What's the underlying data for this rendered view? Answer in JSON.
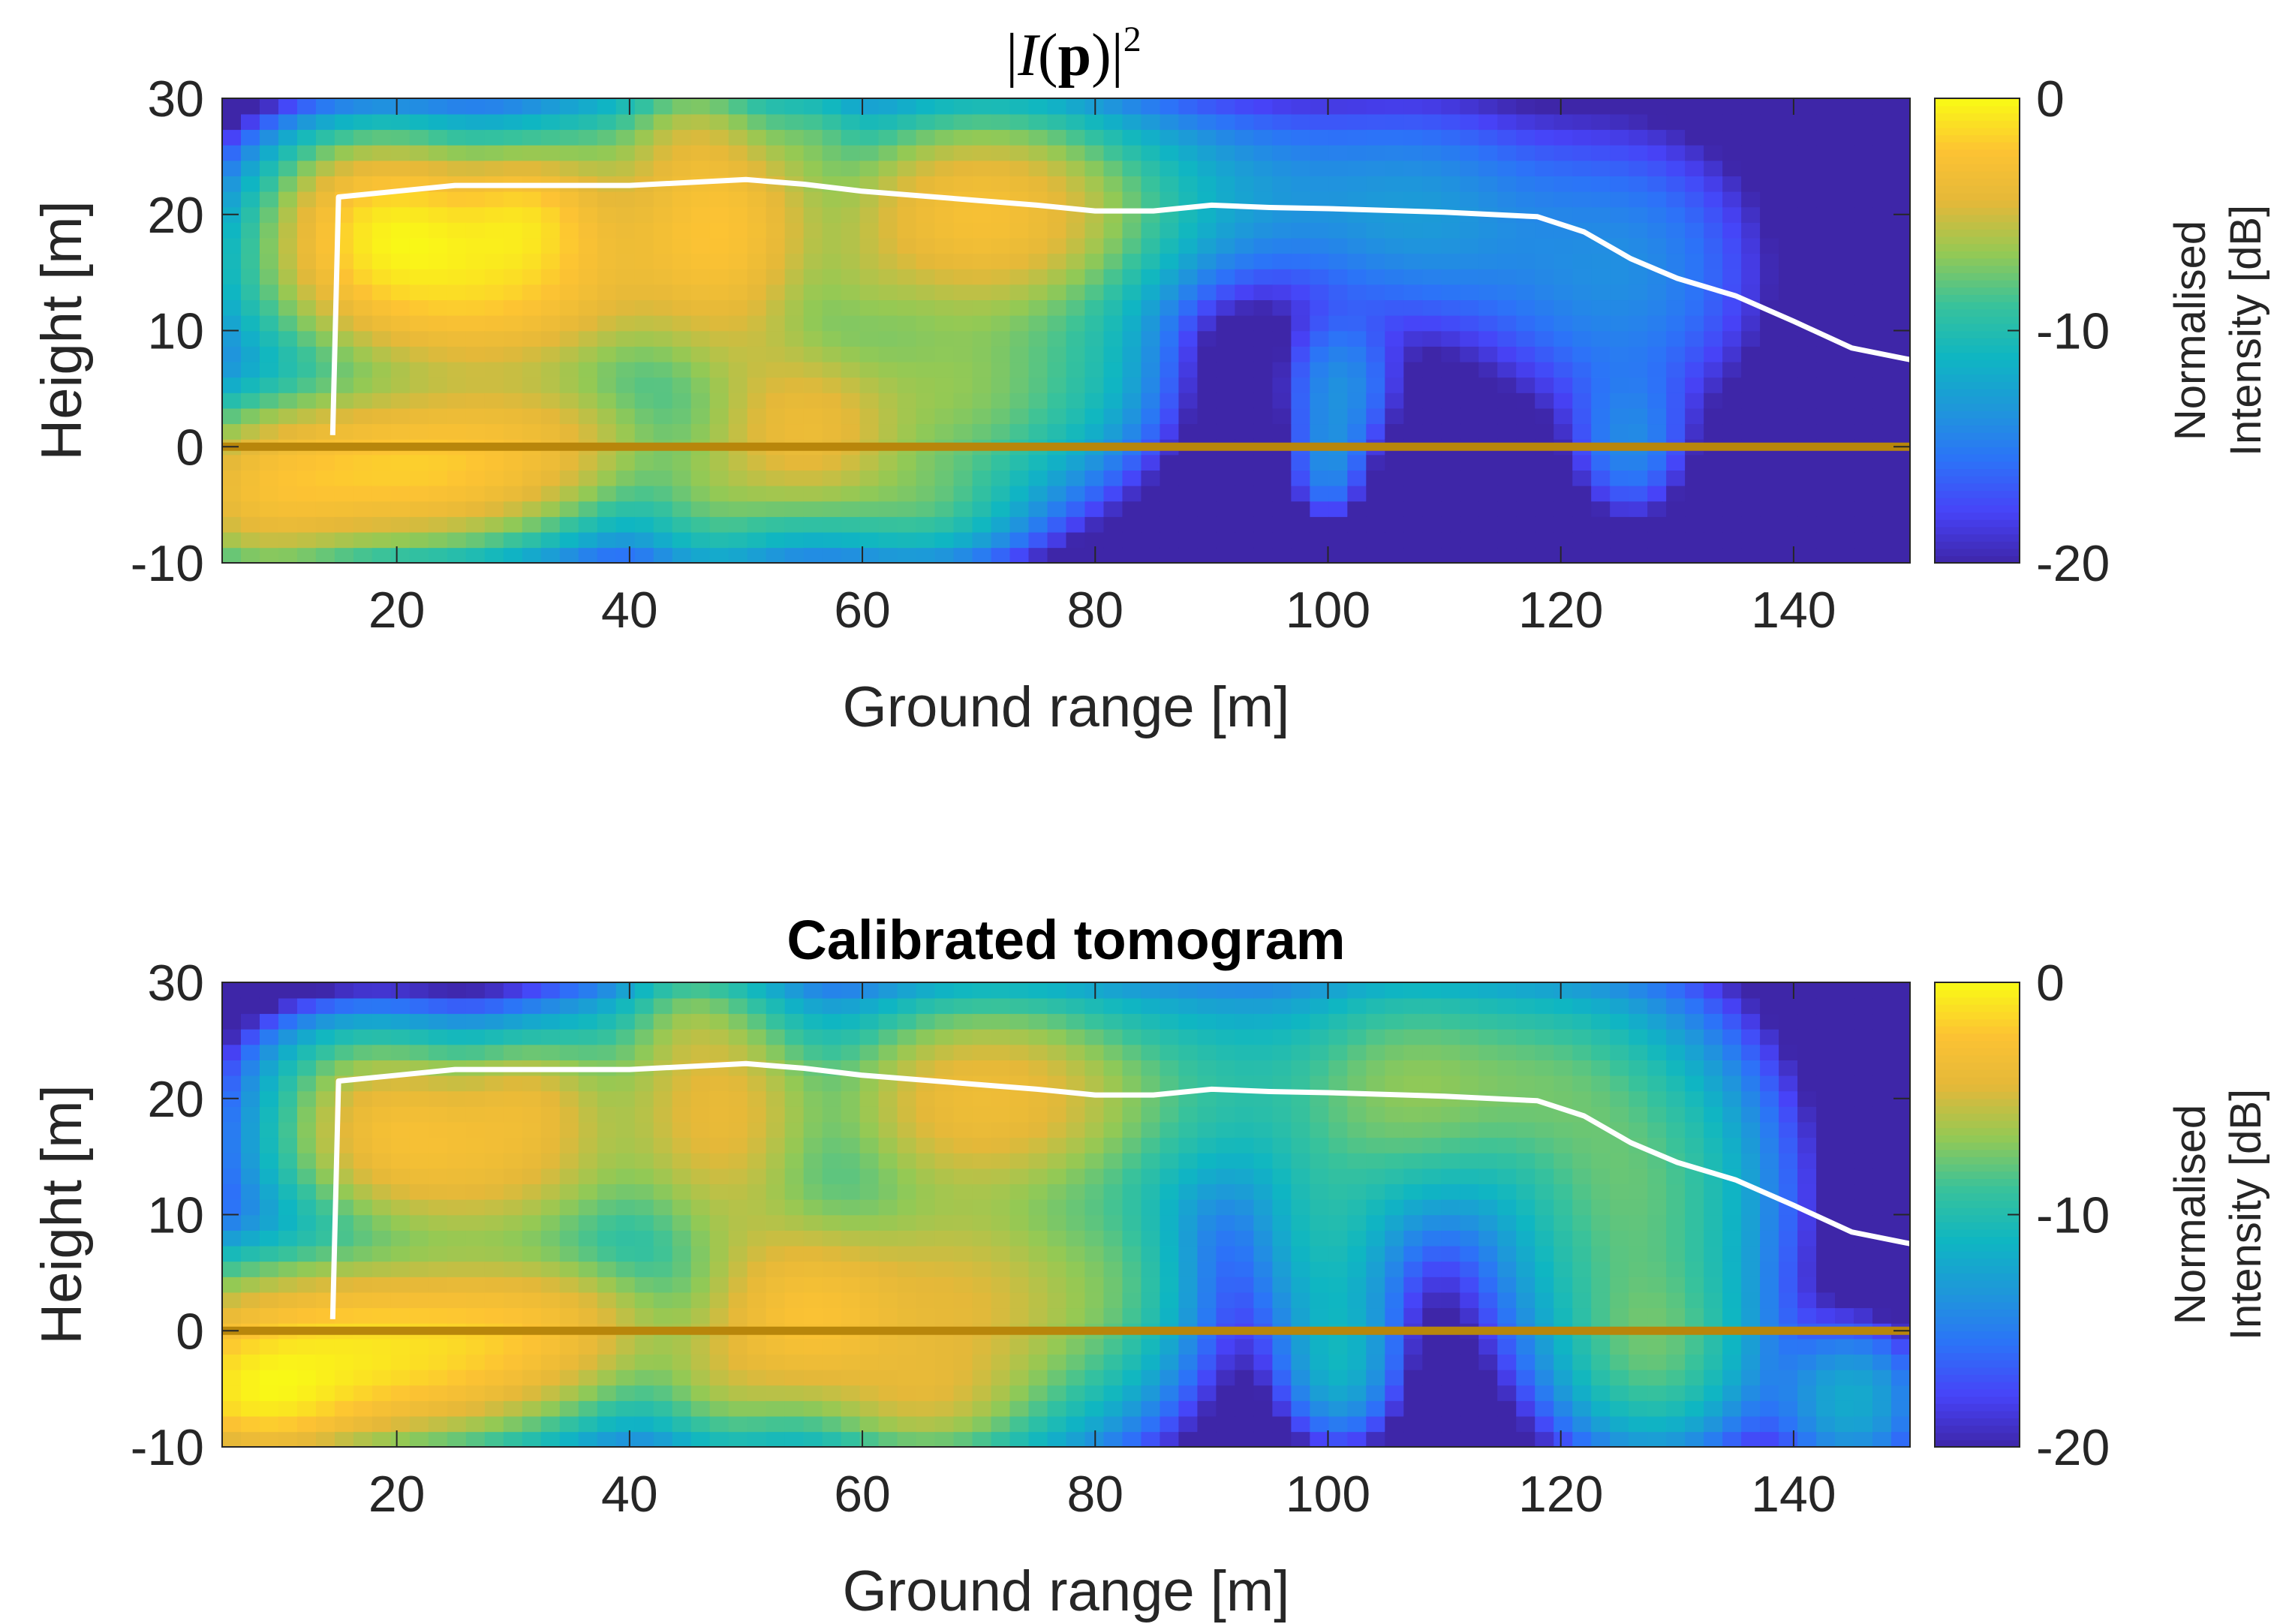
{
  "chart_data": [
    {
      "type": "heatmap",
      "title": "|I(p)|²",
      "title_parts": {
        "pre": "|",
        "var": "I",
        "open": "(",
        "bold": "p",
        "close": ")|",
        "sup": "2"
      },
      "xlabel": "Ground range [m]",
      "ylabel": "Height [m]",
      "xlim": [
        5,
        150
      ],
      "ylim": [
        -10,
        30
      ],
      "xticks": [
        20,
        40,
        60,
        80,
        100,
        120,
        140
      ],
      "yticks": [
        -10,
        0,
        10,
        20,
        30
      ],
      "colorbar": {
        "label_line1": "Normalised",
        "label_line2": "Intensity [dB]",
        "range": [
          -20,
          0
        ],
        "ticks": [
          0,
          -10,
          -20
        ]
      },
      "colormap": [
        "#3e26a8",
        "#4743f8",
        "#2c73f8",
        "#1e97da",
        "#0fb6c2",
        "#38c29b",
        "#94c954",
        "#e4b839",
        "#fdc333",
        "#f9fb15"
      ],
      "ground_line": {
        "height": 0,
        "color": "#b8860b"
      },
      "canopy_profile": {
        "color": "#ffffff",
        "x": [
          14.5,
          15,
          16,
          20,
          25,
          30,
          40,
          50,
          55,
          60,
          70,
          75,
          80,
          85,
          90,
          95,
          100,
          110,
          118,
          122,
          126,
          130,
          135,
          140,
          145,
          150
        ],
        "y": [
          1,
          21.5,
          21.6,
          22,
          22.5,
          22.5,
          22.5,
          23,
          22.6,
          22,
          21.2,
          20.8,
          20.3,
          20.3,
          20.8,
          20.6,
          20.5,
          20.2,
          19.8,
          18.5,
          16.2,
          14.5,
          13,
          10.8,
          8.5,
          7.5
        ]
      },
      "blobs": [
        {
          "x": 27,
          "z": 15,
          "sx": 10,
          "sz": 5.5,
          "dB": -1.5
        },
        {
          "x": 19,
          "z": 19,
          "sx": 5,
          "sz": 4,
          "dB": -3
        },
        {
          "x": 31,
          "z": 20,
          "sx": 3.5,
          "sz": 3,
          "dB": -5
        },
        {
          "x": 15,
          "z": 24,
          "sx": 5,
          "sz": 3,
          "dB": -13
        },
        {
          "x": 38,
          "z": 24,
          "sx": 5,
          "sz": 4,
          "dB": -10
        },
        {
          "x": 20,
          "z": -2,
          "sx": 10,
          "sz": 4,
          "dB": -2
        },
        {
          "x": 8,
          "z": -5,
          "sx": 5,
          "sz": 4,
          "dB": -6
        },
        {
          "x": 33,
          "z": 1,
          "sx": 7,
          "sz": 3.5,
          "dB": -7
        },
        {
          "x": 48,
          "z": 19,
          "sx": 5,
          "sz": 6,
          "dB": -3
        },
        {
          "x": 45,
          "z": 27,
          "sx": 3,
          "sz": 3,
          "dB": -10
        },
        {
          "x": 50,
          "z": 8,
          "sx": 5,
          "sz": 4,
          "dB": -10
        },
        {
          "x": 55,
          "z": 1,
          "sx": 5,
          "sz": 4.5,
          "dB": -4.5
        },
        {
          "x": 47,
          "z": -4,
          "sx": 4,
          "sz": 4,
          "dB": -9
        },
        {
          "x": 56,
          "z": 27,
          "sx": 2.5,
          "sz": 2.5,
          "dB": -12
        },
        {
          "x": 70,
          "z": 20,
          "sx": 8,
          "sz": 5,
          "dB": -3
        },
        {
          "x": 68,
          "z": 5,
          "sx": 8,
          "sz": 6,
          "dB": -7
        },
        {
          "x": 65,
          "z": -5,
          "sx": 5,
          "sz": 3,
          "dB": -10
        },
        {
          "x": 60,
          "z": 14,
          "sx": 3,
          "sz": 3,
          "dB": -12
        },
        {
          "x": 88,
          "z": 22,
          "sx": 10,
          "sz": 5,
          "dB": -13
        },
        {
          "x": 80,
          "z": 8,
          "sx": 4,
          "sz": 5,
          "dB": -15
        },
        {
          "x": 101,
          "z": 5,
          "sx": 3,
          "sz": 4,
          "dB": -14
        },
        {
          "x": 100,
          "z": -2,
          "sx": 2,
          "sz": 3,
          "dB": -15
        },
        {
          "x": 108,
          "z": 20,
          "sx": 7,
          "sz": 6,
          "dB": -14
        },
        {
          "x": 125,
          "z": 15,
          "sx": 8,
          "sz": 8,
          "dB": -14
        },
        {
          "x": 126,
          "z": 0,
          "sx": 3,
          "sz": 4,
          "dB": -15
        }
      ]
    },
    {
      "type": "heatmap",
      "title": "Calibrated tomogram",
      "xlabel": "Ground range [m]",
      "ylabel": "Height [m]",
      "xlim": [
        5,
        150
      ],
      "ylim": [
        -10,
        30
      ],
      "xticks": [
        20,
        40,
        60,
        80,
        100,
        120,
        140
      ],
      "yticks": [
        -10,
        0,
        10,
        20,
        30
      ],
      "colorbar": {
        "label_line1": "Normalised",
        "label_line2": "Intensity [dB]",
        "range": [
          -20,
          0
        ],
        "ticks": [
          0,
          -10,
          -20
        ]
      },
      "colormap": [
        "#3e26a8",
        "#4743f8",
        "#2c73f8",
        "#1e97da",
        "#0fb6c2",
        "#38c29b",
        "#94c954",
        "#e4b839",
        "#fdc333",
        "#f9fb15"
      ],
      "ground_line": {
        "height": 0,
        "color": "#b8860b"
      },
      "canopy_profile": {
        "color": "#ffffff",
        "x": [
          14.5,
          15,
          16,
          20,
          25,
          30,
          40,
          50,
          55,
          60,
          70,
          75,
          80,
          85,
          90,
          95,
          100,
          110,
          118,
          122,
          126,
          130,
          135,
          140,
          145,
          150
        ],
        "y": [
          1,
          21.5,
          21.6,
          22,
          22.5,
          22.5,
          22.5,
          23,
          22.6,
          22,
          21.2,
          20.8,
          20.3,
          20.3,
          20.8,
          20.6,
          20.5,
          20.2,
          19.8,
          18.5,
          16.2,
          14.5,
          13,
          10.8,
          8.5,
          7.5
        ]
      },
      "blobs": [
        {
          "x": 27,
          "z": 15,
          "sx": 9,
          "sz": 5,
          "dB": -4
        },
        {
          "x": 19,
          "z": 18,
          "sx": 5,
          "sz": 4,
          "dB": -6
        },
        {
          "x": 31,
          "z": 20,
          "sx": 3.5,
          "sz": 3,
          "dB": -8
        },
        {
          "x": 15,
          "z": 23,
          "sx": 5,
          "sz": 3,
          "dB": -13
        },
        {
          "x": 38,
          "z": 23,
          "sx": 5,
          "sz": 4,
          "dB": -11
        },
        {
          "x": 17,
          "z": -2,
          "sx": 12,
          "sz": 4.5,
          "dB": -1
        },
        {
          "x": 8,
          "z": -6,
          "sx": 5,
          "sz": 3,
          "dB": -3
        },
        {
          "x": 33,
          "z": 1,
          "sx": 7,
          "sz": 3.5,
          "dB": -6
        },
        {
          "x": 48,
          "z": 19,
          "sx": 5,
          "sz": 6,
          "dB": -4.5
        },
        {
          "x": 45,
          "z": 27,
          "sx": 3,
          "sz": 3,
          "dB": -11
        },
        {
          "x": 50,
          "z": 8,
          "sx": 5,
          "sz": 4,
          "dB": -10
        },
        {
          "x": 55,
          "z": 1,
          "sx": 5,
          "sz": 4.5,
          "dB": -4
        },
        {
          "x": 48,
          "z": -4,
          "sx": 4,
          "sz": 4,
          "dB": -8
        },
        {
          "x": 70,
          "z": 20,
          "sx": 8,
          "sz": 5,
          "dB": -4
        },
        {
          "x": 68,
          "z": 2,
          "sx": 9,
          "sz": 7,
          "dB": -4.5
        },
        {
          "x": 65,
          "z": -6,
          "sx": 5,
          "sz": 3,
          "dB": -8
        },
        {
          "x": 88,
          "z": 21,
          "sx": 12,
          "sz": 6,
          "dB": -10
        },
        {
          "x": 107,
          "z": 21,
          "sx": 6,
          "sz": 6,
          "dB": -8
        },
        {
          "x": 100,
          "z": 8,
          "sx": 4,
          "sz": 6,
          "dB": -11
        },
        {
          "x": 101,
          "z": -3,
          "sx": 3,
          "sz": 4,
          "dB": -12
        },
        {
          "x": 82,
          "z": 5,
          "sx": 4,
          "sz": 6,
          "dB": -12
        },
        {
          "x": 118,
          "z": 22,
          "sx": 6,
          "sz": 5,
          "dB": -10
        },
        {
          "x": 126,
          "z": 12,
          "sx": 7,
          "sz": 9,
          "dB": -8
        },
        {
          "x": 128,
          "z": -2,
          "sx": 5,
          "sz": 5,
          "dB": -9
        },
        {
          "x": 145,
          "z": -6,
          "sx": 4,
          "sz": 4,
          "dB": -12
        }
      ]
    }
  ]
}
